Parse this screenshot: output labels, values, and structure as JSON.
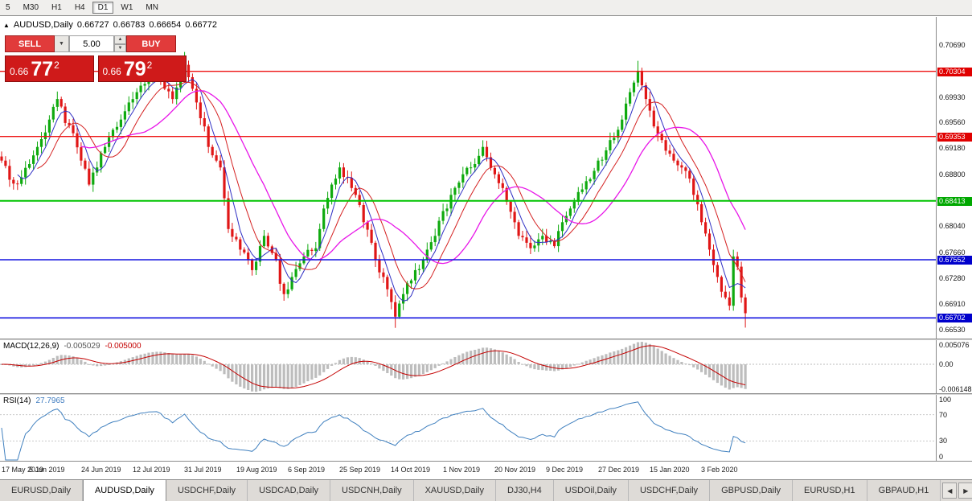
{
  "toolbar": {
    "timeframes": [
      "5",
      "M30",
      "H1",
      "H4",
      "D1",
      "W1",
      "MN"
    ],
    "active": "D1"
  },
  "header": {
    "symbol": "AUDUSD,Daily",
    "open": "0.66727",
    "high": "0.66783",
    "low": "0.66654",
    "close": "0.66772"
  },
  "trade": {
    "sell_label": "SELL",
    "buy_label": "BUY",
    "volume": "5.00",
    "sell": {
      "small": "0.66",
      "big": "77",
      "sup": "2"
    },
    "buy": {
      "small": "0.66",
      "big": "79",
      "sup": "2"
    }
  },
  "indicators": {
    "macd": {
      "name": "MACD(12,26,9)",
      "value": "-0.005029",
      "signal": "-0.005000",
      "axis": [
        "0.005076",
        "0.00",
        "-0.006148"
      ]
    },
    "rsi": {
      "name": "RSI(14)",
      "value": "27.7965",
      "axis": [
        "100",
        "70",
        "30",
        "0"
      ]
    }
  },
  "price_axis": [
    {
      "text": "0.70690",
      "type": "plain"
    },
    {
      "text": "0.70304",
      "type": "red"
    },
    {
      "text": "0.69930",
      "type": "plain"
    },
    {
      "text": "0.69560",
      "type": "plain"
    },
    {
      "text": "0.69353",
      "type": "red"
    },
    {
      "text": "0.69180",
      "type": "plain"
    },
    {
      "text": "0.68800",
      "type": "plain"
    },
    {
      "text": "0.68413",
      "type": "green"
    },
    {
      "text": "0.68040",
      "type": "plain"
    },
    {
      "text": "0.67660",
      "type": "plain"
    },
    {
      "text": "0.67552",
      "type": "blue"
    },
    {
      "text": "0.67280",
      "type": "plain"
    },
    {
      "text": "0.66910",
      "type": "plain"
    },
    {
      "text": "0.66702",
      "type": "blue"
    },
    {
      "text": "0.66530",
      "type": "plain"
    }
  ],
  "tabs": {
    "items": [
      "EURUSD,Daily",
      "AUDUSD,Daily",
      "USDCHF,Daily",
      "USDCAD,Daily",
      "USDCNH,Daily",
      "XAUUSD,Daily",
      "DJ30,H4",
      "USDOil,Daily",
      "USDCHF,Daily",
      "GBPUSD,Daily",
      "EURUSD,H1",
      "GBPAUD,H1"
    ],
    "active_index": 1,
    "scroll_left": "◀",
    "scroll_right": "▶"
  },
  "colors": {
    "up": "#0faa0f",
    "down": "#e01616",
    "macd_hist": "#bdbdbd",
    "macd_signal": "#c40000",
    "rsi": "#4080bf",
    "level_red": "#ee1111",
    "level_green": "#00c400",
    "level_blue": "#1414e0",
    "trade_red": "#e13b3b",
    "price_box_red": "#cf1a1a"
  },
  "chart_data": {
    "type": "candlestick",
    "symbol": "AUDUSD",
    "timeframe": "Daily",
    "days_total": 188,
    "y_range": [
      0.664,
      0.711
    ],
    "x_labels": [
      "17 May 2019",
      "5 Jun 2019",
      "24 Jun 2019",
      "12 Jul 2019",
      "31 Jul 2019",
      "19 Aug 2019",
      "6 Sep 2019",
      "25 Sep 2019",
      "14 Oct 2019",
      "1 Nov 2019",
      "20 Nov 2019",
      "9 Dec 2019",
      "27 Dec 2019",
      "15 Jan 2020",
      "3 Feb 2020"
    ],
    "label_every_days": 13,
    "ohlc_last": {
      "open": 0.66727,
      "high": 0.66783,
      "low": 0.66654,
      "close": 0.66772
    },
    "levels": [
      {
        "price": 0.70304,
        "hex": "#ee1111",
        "width": 1.4
      },
      {
        "price": 0.69353,
        "hex": "#ee1111",
        "width": 1.4
      },
      {
        "price": 0.68413,
        "hex": "#00c400",
        "width": 2
      },
      {
        "price": 0.67552,
        "hex": "#1414e0",
        "width": 1.6
      },
      {
        "price": 0.66702,
        "hex": "#1414e0",
        "width": 1.6
      }
    ],
    "moving_averages": [
      {
        "period": 5,
        "hex": "#2f2fc4"
      },
      {
        "period": 10,
        "hex": "#d42020"
      },
      {
        "period": 21,
        "hex": "#e816e8"
      }
    ],
    "macd_range": [
      -0.006148,
      0.005076
    ],
    "rsi_levels": [
      30,
      70
    ],
    "close_anchors": [
      [
        0,
        0.69
      ],
      [
        2,
        0.6872
      ],
      [
        4,
        0.6866
      ],
      [
        7,
        0.6895
      ],
      [
        9,
        0.692
      ],
      [
        12,
        0.696
      ],
      [
        14,
        0.699
      ],
      [
        16,
        0.6955
      ],
      [
        18,
        0.694
      ],
      [
        20,
        0.69
      ],
      [
        22,
        0.6865
      ],
      [
        24,
        0.689
      ],
      [
        26,
        0.692
      ],
      [
        28,
        0.6945
      ],
      [
        30,
        0.696
      ],
      [
        32,
        0.6985
      ],
      [
        34,
        0.7
      ],
      [
        36,
        0.7012
      ],
      [
        39,
        0.7022
      ],
      [
        41,
        0.7005
      ],
      [
        43,
        0.699
      ],
      [
        45,
        0.702
      ],
      [
        46,
        0.704
      ],
      [
        48,
        0.7005
      ],
      [
        49,
        0.6985
      ],
      [
        51,
        0.695
      ],
      [
        52,
        0.692
      ],
      [
        54,
        0.69
      ],
      [
        55,
        0.689
      ],
      [
        56,
        0.6845
      ],
      [
        57,
        0.68
      ],
      [
        59,
        0.6785
      ],
      [
        60,
        0.677
      ],
      [
        62,
        0.6755
      ],
      [
        63,
        0.674
      ],
      [
        65,
        0.6775
      ],
      [
        66,
        0.679
      ],
      [
        68,
        0.6765
      ],
      [
        69,
        0.6755
      ],
      [
        70,
        0.672
      ],
      [
        71,
        0.6705
      ],
      [
        73,
        0.673
      ],
      [
        75,
        0.675
      ],
      [
        76,
        0.676
      ],
      [
        78,
        0.6768
      ],
      [
        79,
        0.6772
      ],
      [
        80,
        0.68
      ],
      [
        81,
        0.683
      ],
      [
        83,
        0.6865
      ],
      [
        85,
        0.689
      ],
      [
        87,
        0.6875
      ],
      [
        88,
        0.686
      ],
      [
        90,
        0.6835
      ],
      [
        91,
        0.681
      ],
      [
        93,
        0.678
      ],
      [
        94,
        0.6755
      ],
      [
        96,
        0.673
      ],
      [
        97,
        0.6712
      ],
      [
        99,
        0.6672
      ],
      [
        101,
        0.6705
      ],
      [
        103,
        0.6725
      ],
      [
        104,
        0.674
      ],
      [
        106,
        0.6755
      ],
      [
        107,
        0.677
      ],
      [
        109,
        0.679
      ],
      [
        110,
        0.6812
      ],
      [
        112,
        0.683
      ],
      [
        113,
        0.685
      ],
      [
        115,
        0.6868
      ],
      [
        116,
        0.688
      ],
      [
        118,
        0.689
      ],
      [
        119,
        0.6895
      ],
      [
        121,
        0.692
      ],
      [
        122,
        0.6905
      ],
      [
        124,
        0.688
      ],
      [
        126,
        0.686
      ],
      [
        127,
        0.684
      ],
      [
        129,
        0.681
      ],
      [
        130,
        0.679
      ],
      [
        132,
        0.678
      ],
      [
        133,
        0.6772
      ],
      [
        135,
        0.6785
      ],
      [
        136,
        0.679
      ],
      [
        138,
        0.6782
      ],
      [
        139,
        0.6775
      ],
      [
        141,
        0.681
      ],
      [
        143,
        0.683
      ],
      [
        144,
        0.684
      ],
      [
        146,
        0.6858
      ],
      [
        147,
        0.687
      ],
      [
        149,
        0.6885
      ],
      [
        150,
        0.69
      ],
      [
        152,
        0.6915
      ],
      [
        153,
        0.693
      ],
      [
        155,
        0.6945
      ],
      [
        156,
        0.696
      ],
      [
        158,
        0.7
      ],
      [
        160,
        0.703
      ],
      [
        161,
        0.701
      ],
      [
        162,
        0.699
      ],
      [
        164,
        0.695
      ],
      [
        166,
        0.693
      ],
      [
        168,
        0.691
      ],
      [
        169,
        0.69
      ],
      [
        171,
        0.689
      ],
      [
        172,
        0.6885
      ],
      [
        174,
        0.685
      ],
      [
        176,
        0.681
      ],
      [
        178,
        0.677
      ],
      [
        180,
        0.673
      ],
      [
        182,
        0.67
      ],
      [
        183,
        0.6688
      ],
      [
        184,
        0.676
      ],
      [
        185,
        0.6745
      ],
      [
        186,
        0.67
      ],
      [
        187,
        0.6677
      ]
    ]
  }
}
